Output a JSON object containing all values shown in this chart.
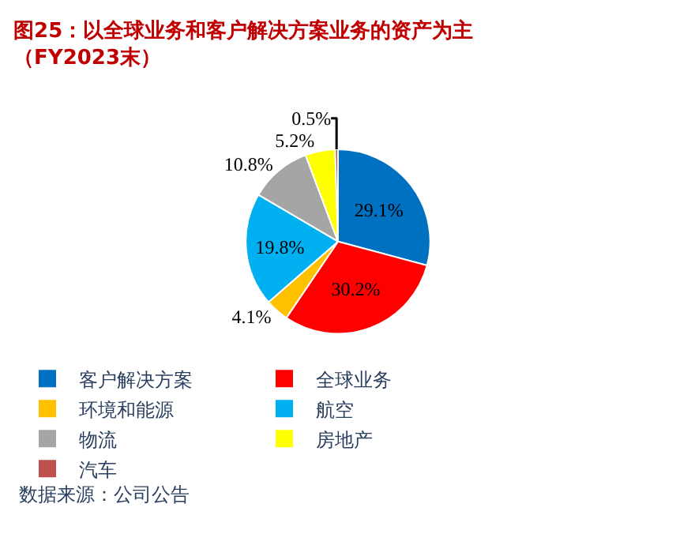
{
  "chart_data": {
    "type": "pie",
    "title": "图25：以全球业务和客户解决方案业务的资产为主（FY2023末）",
    "categories": [
      "客户解决方案",
      "全球业务",
      "环境和能源",
      "航空",
      "物流",
      "房地产",
      "汽车"
    ],
    "values": [
      29.1,
      30.2,
      4.1,
      19.8,
      10.8,
      5.2,
      0.5
    ],
    "value_labels": [
      "29.1%",
      "30.2%",
      "4.1%",
      "19.8%",
      "10.8%",
      "5.2%",
      "0.5%"
    ],
    "colors": [
      "#0070c0",
      "#ff0000",
      "#ffc000",
      "#00b0f0",
      "#a5a5a5",
      "#ffff00",
      "#c0504d"
    ],
    "legend": "bottom",
    "annotations": [
      "数据来源：公司公告"
    ]
  }
}
